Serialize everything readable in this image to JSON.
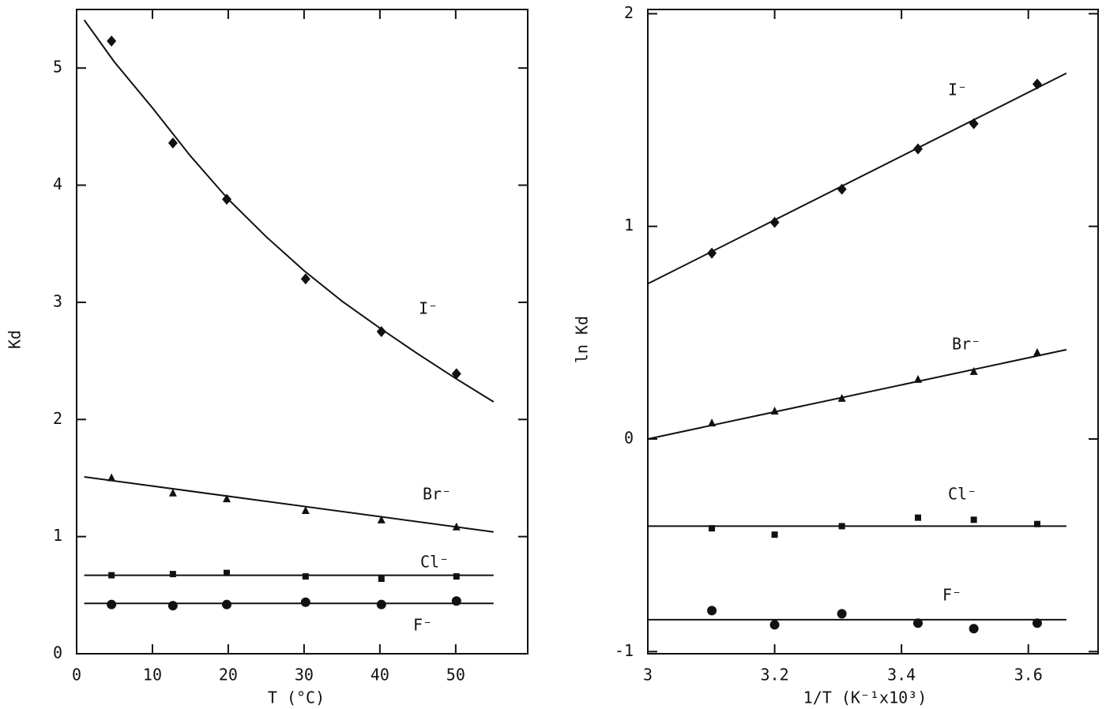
{
  "chart_data": [
    {
      "type": "scatter",
      "xlabel": "T  (°C)",
      "ylabel": "Kd",
      "xlim": [
        0,
        59.5
      ],
      "ylim": [
        0,
        5.5
      ],
      "xticks": [
        0,
        10,
        20,
        30,
        40,
        50
      ],
      "yticks": [
        0,
        1,
        2,
        3,
        4,
        5
      ],
      "x": [
        4.6,
        12.7,
        19.8,
        30.2,
        40.2,
        50.1
      ],
      "series": [
        {
          "name": "I⁻",
          "marker": "diamond",
          "color": "#111",
          "values": [
            5.23,
            4.36,
            3.88,
            3.2,
            2.75,
            2.39
          ],
          "fit_x": [
            1,
            5,
            10,
            15,
            20,
            25,
            30,
            35,
            40,
            45,
            50,
            55
          ],
          "fit_y": [
            5.41,
            5.05,
            4.66,
            4.25,
            3.88,
            3.56,
            3.27,
            3.01,
            2.78,
            2.56,
            2.35,
            2.15
          ]
        },
        {
          "name": "Br⁻",
          "marker": "triangle",
          "color": "#111",
          "values": [
            1.5,
            1.37,
            1.32,
            1.22,
            1.14,
            1.08
          ],
          "fit_x": [
            1,
            55
          ],
          "fit_y": [
            1.51,
            1.04
          ]
        },
        {
          "name": "Cl⁻",
          "marker": "square",
          "color": "#111",
          "values": [
            0.67,
            0.68,
            0.69,
            0.66,
            0.64,
            0.66
          ],
          "fit_x": [
            1,
            55
          ],
          "fit_y": [
            0.67,
            0.67
          ]
        },
        {
          "name": "F⁻",
          "marker": "circle",
          "color": "#111",
          "values": [
            0.42,
            0.41,
            0.42,
            0.44,
            0.42,
            0.45
          ],
          "fit_x": [
            1,
            55
          ],
          "fit_y": [
            0.43,
            0.43
          ]
        }
      ]
    },
    {
      "type": "scatter",
      "xlabel": "1/T  (K⁻¹x10³)",
      "ylabel": "ln Kd",
      "xlim": [
        3,
        3.71
      ],
      "ylim": [
        -1.01,
        2.02
      ],
      "xticks": [
        3,
        3.2,
        3.4,
        3.6
      ],
      "yticks": [
        -1,
        0,
        1,
        2
      ],
      "x": [
        3.101,
        3.2,
        3.306,
        3.426,
        3.514,
        3.614
      ],
      "series": [
        {
          "name": "I⁻",
          "marker": "diamond",
          "color": "#111",
          "values": [
            0.874,
            1.019,
            1.175,
            1.364,
            1.483,
            1.669
          ],
          "fit_x": [
            3,
            3.66
          ],
          "fit_y": [
            0.73,
            1.72
          ]
        },
        {
          "name": "Br⁻",
          "marker": "triangle",
          "color": "#111",
          "values": [
            0.074,
            0.13,
            0.19,
            0.279,
            0.316,
            0.405
          ],
          "fit_x": [
            3,
            3.66
          ],
          "fit_y": [
            0,
            0.42
          ]
        },
        {
          "name": "Cl⁻",
          "marker": "square",
          "color": "#111",
          "values": [
            -0.42,
            -0.45,
            -0.41,
            -0.37,
            -0.38,
            -0.4
          ],
          "fit_x": [
            3,
            3.66
          ],
          "fit_y": [
            -0.41,
            -0.41
          ]
        },
        {
          "name": "F⁻",
          "marker": "circle",
          "color": "#111",
          "values": [
            -0.807,
            -0.874,
            -0.822,
            -0.866,
            -0.892,
            -0.866
          ],
          "fit_x": [
            3,
            3.66
          ],
          "fit_y": [
            -0.85,
            -0.85
          ]
        }
      ]
    }
  ]
}
